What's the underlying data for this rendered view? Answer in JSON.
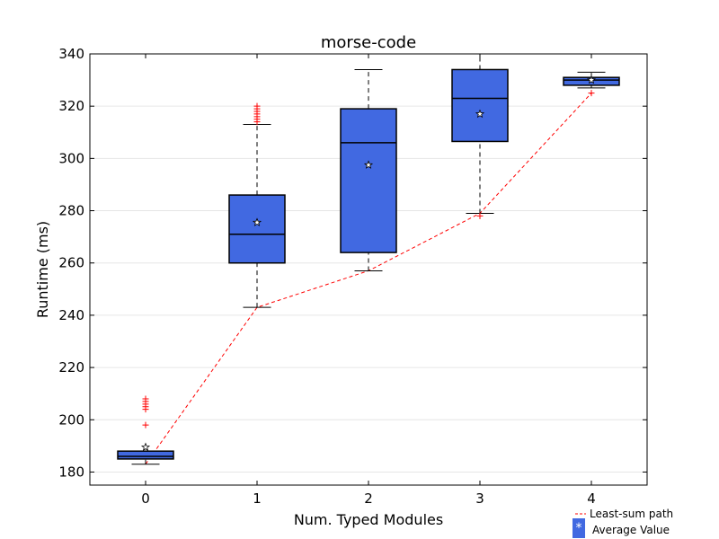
{
  "chart_data": {
    "type": "box",
    "title": "morse-code",
    "xlabel": "Num. Typed Modules",
    "ylabel": "Runtime (ms)",
    "xlim": [
      -0.5,
      4.5
    ],
    "ylim": [
      175,
      340
    ],
    "x_ticks": [
      0,
      1,
      2,
      3,
      4
    ],
    "y_ticks": [
      180,
      200,
      220,
      240,
      260,
      280,
      300,
      320,
      340
    ],
    "grid": "horizontal",
    "box_color": "#4169e1",
    "path_color": "#ff0000",
    "outlier_color": "#ff0000",
    "boxes": [
      {
        "x": 0,
        "whisker_low": 183,
        "q1": 185,
        "median": 186,
        "q3": 188,
        "whisker_high": 188,
        "mean": 189.5,
        "outliers": [
          198,
          204,
          205,
          206,
          207,
          208
        ]
      },
      {
        "x": 1,
        "whisker_low": 243,
        "q1": 260,
        "median": 271,
        "q3": 286,
        "whisker_high": 313,
        "mean": 275.5,
        "outliers": [
          314,
          315,
          316,
          317,
          318,
          319,
          320
        ]
      },
      {
        "x": 2,
        "whisker_low": 257,
        "q1": 264,
        "median": 306,
        "q3": 319,
        "whisker_high": 334,
        "mean": 297.5,
        "outliers": []
      },
      {
        "x": 3,
        "whisker_low": 279,
        "q1": 306.5,
        "median": 323,
        "q3": 334,
        "whisker_high": 340,
        "mean": 317,
        "outliers": [
          278
        ]
      },
      {
        "x": 4,
        "whisker_low": 327,
        "q1": 328,
        "median": 330,
        "q3": 331,
        "whisker_high": 333,
        "mean": 330,
        "outliers": [
          325
        ]
      }
    ],
    "least_sum_path": {
      "x": [
        0,
        1,
        2,
        3,
        4
      ],
      "y": [
        183,
        243,
        257,
        279,
        325
      ]
    },
    "legend": {
      "placement": "bottom-right, below plot",
      "entries": [
        {
          "label": "Least-sum path",
          "kind": "dashed-line"
        },
        {
          "label": "Average Value",
          "kind": "star-marker"
        }
      ]
    }
  }
}
